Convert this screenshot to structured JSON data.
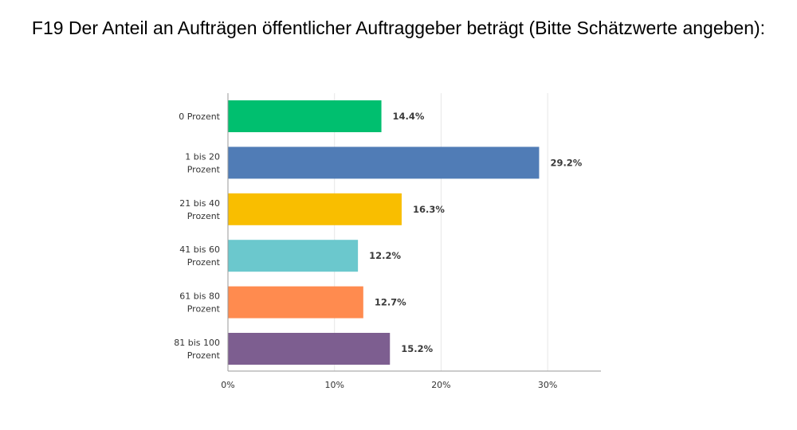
{
  "chart_data": {
    "type": "bar",
    "orientation": "horizontal",
    "title": "F19 Der Anteil an Aufträgen öffentlicher Auftraggeber beträgt (Bitte Schätzwerte angeben):",
    "categories": [
      [
        "0 Prozent"
      ],
      [
        "1 bis 20",
        "Prozent"
      ],
      [
        "21 bis 40",
        "Prozent"
      ],
      [
        "41 bis 60",
        "Prozent"
      ],
      [
        "61 bis 80",
        "Prozent"
      ],
      [
        "81 bis 100",
        "Prozent"
      ]
    ],
    "values": [
      14.4,
      29.2,
      16.3,
      12.2,
      12.7,
      15.2
    ],
    "value_labels": [
      "14.4%",
      "29.2%",
      "16.3%",
      "12.2%",
      "12.7%",
      "15.2%"
    ],
    "colors": [
      "#00bf6f",
      "#507cb6",
      "#f9be00",
      "#6bc8cd",
      "#ff8b4f",
      "#7d5e90"
    ],
    "xlim": [
      0,
      35
    ],
    "xticks": [
      0,
      10,
      20,
      30
    ],
    "xtick_labels": [
      "0%",
      "10%",
      "20%",
      "30%"
    ],
    "xlabel": "",
    "ylabel": "",
    "grid": true,
    "legend": "none"
  }
}
